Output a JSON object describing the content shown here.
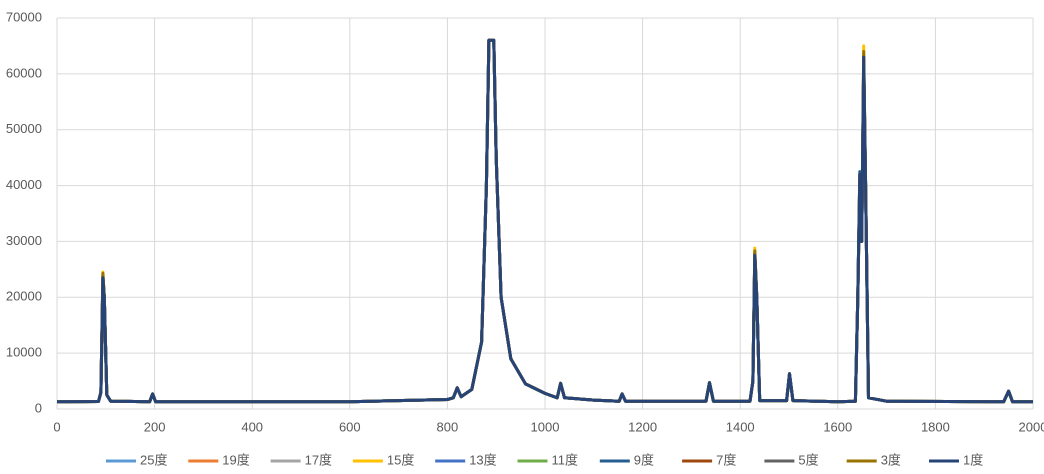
{
  "chart_data": {
    "type": "line",
    "x": [
      0,
      85,
      90,
      94,
      97,
      102,
      110,
      190,
      196,
      202,
      600,
      800,
      812,
      820,
      828,
      850,
      870,
      880,
      885,
      895,
      900,
      910,
      930,
      960,
      1000,
      1025,
      1032,
      1040,
      1100,
      1152,
      1158,
      1165,
      1330,
      1337,
      1345,
      1420,
      1426,
      1430,
      1434,
      1440,
      1495,
      1501,
      1508,
      1600,
      1636,
      1641,
      1645,
      1649,
      1653,
      1657,
      1663,
      1700,
      1940,
      1950,
      1958,
      2000
    ],
    "series": [
      {
        "name": "25度",
        "color": "#5b9bd5",
        "values": [
          1300,
          1350,
          3000,
          22500,
          20000,
          2500,
          1400,
          1300,
          2700,
          1300,
          1300,
          1700,
          2000,
          3800,
          2200,
          3500,
          12000,
          40000,
          66000,
          66000,
          45000,
          20000,
          9000,
          4500,
          2800,
          2000,
          4600,
          2000,
          1600,
          1400,
          2700,
          1400,
          1400,
          4700,
          1400,
          1400,
          5000,
          27000,
          20000,
          1500,
          1500,
          6300,
          1500,
          1300,
          1400,
          20000,
          40000,
          30000,
          61000,
          40000,
          2000,
          1400,
          1300,
          3200,
          1300,
          1300
        ]
      },
      {
        "name": "19度",
        "color": "#ed7d31",
        "values": [
          1300,
          1350,
          3000,
          24000,
          20000,
          2500,
          1400,
          1300,
          2700,
          1300,
          1300,
          1700,
          2000,
          3800,
          2200,
          3500,
          12000,
          40000,
          66000,
          66000,
          45000,
          20000,
          9000,
          4500,
          2800,
          2000,
          4600,
          2000,
          1600,
          1400,
          2700,
          1400,
          1400,
          4700,
          1400,
          1400,
          5000,
          28000,
          20000,
          1500,
          1500,
          6300,
          1500,
          1300,
          1400,
          20000,
          41000,
          30000,
          62500,
          40000,
          2000,
          1400,
          1300,
          3200,
          1300,
          1300
        ]
      },
      {
        "name": "17度",
        "color": "#a5a5a5",
        "values": [
          1300,
          1350,
          3000,
          23000,
          20000,
          2500,
          1400,
          1300,
          2700,
          1300,
          1300,
          1700,
          2000,
          3800,
          2200,
          3500,
          12000,
          40000,
          66000,
          66000,
          45000,
          20000,
          9000,
          4500,
          2800,
          2000,
          4600,
          2000,
          1600,
          1400,
          2700,
          1400,
          1400,
          4700,
          1400,
          1400,
          5000,
          27500,
          20000,
          1500,
          1500,
          6300,
          1500,
          1300,
          1400,
          20000,
          40500,
          30000,
          62000,
          40000,
          2000,
          1400,
          1300,
          3200,
          1300,
          1300
        ]
      },
      {
        "name": "15度",
        "color": "#ffc000",
        "values": [
          1300,
          1350,
          3000,
          24500,
          20000,
          2500,
          1400,
          1300,
          2700,
          1300,
          1300,
          1700,
          2000,
          3800,
          2200,
          3500,
          12000,
          40000,
          66000,
          66000,
          45000,
          20000,
          9000,
          4500,
          2800,
          2000,
          4600,
          2000,
          1600,
          1400,
          2700,
          1400,
          1400,
          4700,
          1400,
          1400,
          5000,
          28800,
          20000,
          1500,
          1500,
          6300,
          1500,
          1300,
          1400,
          20000,
          42000,
          30000,
          65000,
          40000,
          2000,
          1400,
          1300,
          3200,
          1300,
          1300
        ]
      },
      {
        "name": "13度",
        "color": "#4472c4",
        "values": [
          1300,
          1350,
          3000,
          23000,
          20000,
          2500,
          1400,
          1300,
          2700,
          1300,
          1300,
          1700,
          2000,
          3800,
          2200,
          3500,
          12000,
          40000,
          66000,
          66000,
          45000,
          20000,
          9000,
          4500,
          2800,
          2000,
          4600,
          2000,
          1600,
          1400,
          2700,
          1400,
          1400,
          4700,
          1400,
          1400,
          5000,
          27200,
          20000,
          1500,
          1500,
          6300,
          1500,
          1300,
          1400,
          20000,
          41000,
          30000,
          62000,
          40000,
          2000,
          1400,
          1300,
          3200,
          1300,
          1300
        ]
      },
      {
        "name": "11度",
        "color": "#70ad47",
        "values": [
          1300,
          1350,
          3000,
          22800,
          20000,
          2500,
          1400,
          1300,
          2700,
          1300,
          1300,
          1700,
          2000,
          3800,
          2200,
          3500,
          12000,
          40000,
          66000,
          66000,
          45000,
          20000,
          9000,
          4500,
          2800,
          2000,
          4600,
          2000,
          1600,
          1400,
          2700,
          1400,
          1400,
          4700,
          1400,
          1400,
          5000,
          27000,
          20000,
          1500,
          1500,
          6300,
          1500,
          1300,
          1400,
          20000,
          40000,
          30000,
          61500,
          40000,
          2000,
          1400,
          1300,
          3200,
          1300,
          1300
        ]
      },
      {
        "name": "9度",
        "color": "#255e91",
        "values": [
          1300,
          1350,
          3000,
          23500,
          20000,
          2500,
          1400,
          1300,
          2700,
          1300,
          1300,
          1700,
          2000,
          3800,
          2200,
          3500,
          12000,
          40000,
          66000,
          66000,
          45000,
          20000,
          9000,
          4500,
          2800,
          2000,
          4600,
          2000,
          1600,
          1400,
          2700,
          1400,
          1400,
          4700,
          1400,
          1400,
          5000,
          27500,
          20000,
          1500,
          1500,
          6300,
          1500,
          1300,
          1400,
          20000,
          42500,
          30000,
          63000,
          40000,
          2000,
          1400,
          1300,
          3200,
          1300,
          1300
        ]
      },
      {
        "name": "7度",
        "color": "#9e480e",
        "values": [
          1300,
          1350,
          3000,
          24000,
          20000,
          2500,
          1400,
          1300,
          2700,
          1300,
          1300,
          1700,
          2000,
          3800,
          2200,
          3500,
          12000,
          40000,
          66000,
          66000,
          45000,
          20000,
          9000,
          4500,
          2800,
          2000,
          4600,
          2000,
          1600,
          1400,
          2700,
          1400,
          1400,
          4700,
          1400,
          1400,
          5000,
          28000,
          20000,
          1500,
          1500,
          6300,
          1500,
          1300,
          1400,
          20000,
          41500,
          30000,
          62500,
          40000,
          2000,
          1400,
          1300,
          3200,
          1300,
          1300
        ]
      },
      {
        "name": "5度",
        "color": "#636363",
        "values": [
          1300,
          1350,
          3000,
          23500,
          20000,
          2500,
          1400,
          1300,
          2700,
          1300,
          1300,
          1700,
          2000,
          3800,
          2200,
          3500,
          12000,
          40000,
          66000,
          66000,
          45000,
          20000,
          9000,
          4500,
          2800,
          2000,
          4600,
          2000,
          1600,
          1400,
          2700,
          1400,
          1400,
          4700,
          1400,
          1400,
          5000,
          27800,
          20000,
          1500,
          1500,
          6300,
          1500,
          1300,
          1400,
          20000,
          41000,
          30000,
          62000,
          40000,
          2000,
          1400,
          1300,
          3200,
          1300,
          1300
        ]
      },
      {
        "name": "3度",
        "color": "#997300",
        "values": [
          1300,
          1350,
          3000,
          24300,
          20000,
          2500,
          1400,
          1300,
          2700,
          1300,
          1300,
          1700,
          2000,
          3800,
          2200,
          3500,
          12000,
          40000,
          66000,
          66000,
          45000,
          20000,
          9000,
          4500,
          2800,
          2000,
          4600,
          2000,
          1600,
          1400,
          2700,
          1400,
          1400,
          4700,
          1400,
          1400,
          5000,
          28300,
          20000,
          1500,
          1500,
          6300,
          1500,
          1300,
          1400,
          20000,
          41800,
          30000,
          64000,
          40000,
          2000,
          1400,
          1300,
          3200,
          1300,
          1300
        ]
      },
      {
        "name": "1度",
        "color": "#264478",
        "values": [
          1300,
          1350,
          3000,
          23500,
          20000,
          2500,
          1400,
          1300,
          2700,
          1300,
          1300,
          1700,
          2000,
          3800,
          2200,
          3500,
          12000,
          40000,
          66000,
          66000,
          45000,
          20000,
          9000,
          4500,
          2800,
          2000,
          4600,
          2000,
          1600,
          1400,
          2700,
          1400,
          1400,
          4700,
          1400,
          1400,
          5000,
          27500,
          20000,
          1500,
          1500,
          6300,
          1500,
          1300,
          1400,
          20000,
          42000,
          30000,
          63000,
          40000,
          2000,
          1400,
          1300,
          3200,
          1300,
          1300
        ]
      }
    ],
    "xlim": [
      0,
      2000
    ],
    "xticks": [
      0,
      200,
      400,
      600,
      800,
      1000,
      1200,
      1400,
      1600,
      1800,
      2000
    ],
    "ylim": [
      0,
      70000
    ],
    "yticks": [
      0,
      10000,
      20000,
      30000,
      40000,
      50000,
      60000,
      70000
    ],
    "grid": true,
    "legend": "bottom"
  }
}
